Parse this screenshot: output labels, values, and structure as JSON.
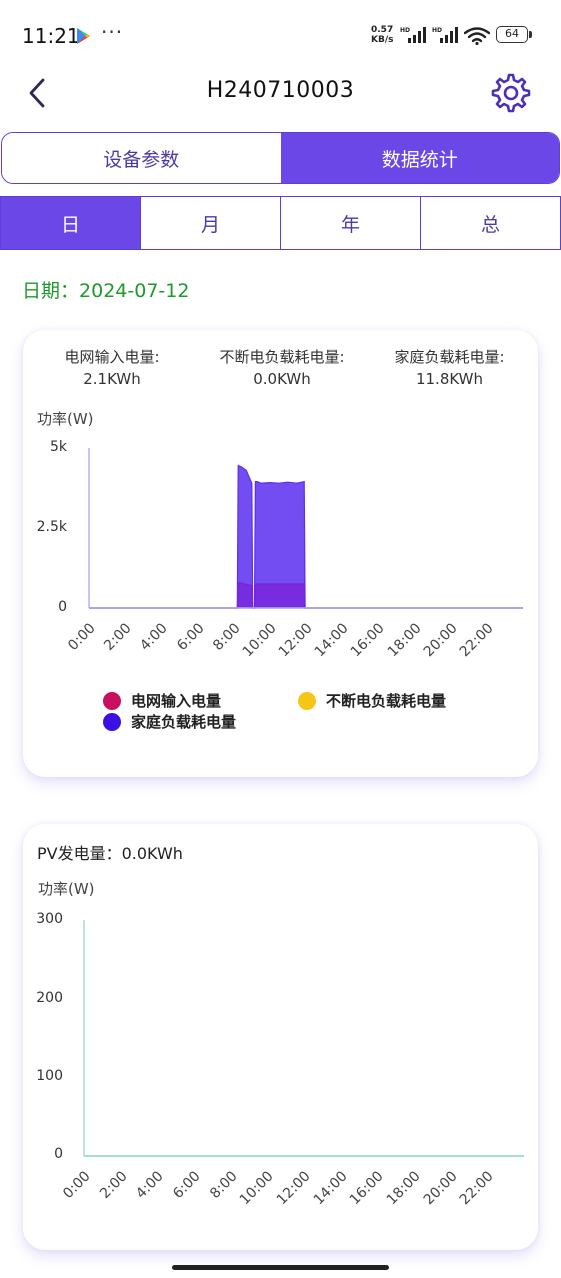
{
  "status_bar": {
    "time": "11:21",
    "more": "···",
    "net_speed_value": "0.57",
    "net_speed_unit": "KB/s",
    "battery": "64",
    "icons": [
      "play-store-icon",
      "signal-icon",
      "wifi-icon",
      "battery-icon"
    ]
  },
  "header": {
    "title": "H240710003",
    "back_icon": "chevron-left-icon",
    "settings_icon": "gear-icon"
  },
  "main_tabs": [
    {
      "label": "设备参数",
      "active": false
    },
    {
      "label": "数据统计",
      "active": true
    }
  ],
  "period_tabs": [
    {
      "label": "日",
      "active": true
    },
    {
      "label": "月",
      "active": false
    },
    {
      "label": "年",
      "active": false
    },
    {
      "label": "总",
      "active": false
    }
  ],
  "date": {
    "label": "日期：",
    "value": "2024-07-12"
  },
  "card1": {
    "stats": [
      {
        "label": "电网输入电量:",
        "value": "2.1KWh"
      },
      {
        "label": "不断电负载耗电量:",
        "value": "0.0KWh"
      },
      {
        "label": "家庭负载耗电量:",
        "value": "11.8KWh"
      }
    ],
    "legend": [
      {
        "name": "电网输入电量",
        "color": "#C8105F"
      },
      {
        "name": "不断电负载耗电量",
        "color": "#F5C518"
      },
      {
        "name": "家庭负载耗电量",
        "color": "#3A10E5"
      }
    ]
  },
  "card2": {
    "pv_label": "PV发电量：",
    "pv_value": "0.0KWh"
  },
  "colors": {
    "accent": "#6B47E8",
    "date_green": "#1E9A2A",
    "home_load": "#5B2EF0",
    "grid_input": "#7A22D8",
    "axis": "#9FA4EE",
    "pv_axis": "#8FD6C4"
  },
  "chart_data": [
    {
      "type": "area",
      "title": "",
      "ylabel": "功率(W)",
      "xlabel": "",
      "x_ticks": [
        "0:00",
        "2:00",
        "4:00",
        "6:00",
        "8:00",
        "10:00",
        "12:00",
        "14:00",
        "16:00",
        "18:00",
        "20:00",
        "22:00"
      ],
      "y_ticks": [
        "0",
        "2.5k",
        "5k"
      ],
      "xlim": [
        0,
        24
      ],
      "ylim": [
        0,
        5000
      ],
      "series": [
        {
          "name": "家庭负载耗电量",
          "color": "#5B2EF0",
          "x": [
            0,
            8.2,
            8.25,
            8.45,
            8.7,
            8.85,
            9.0,
            9.05,
            9.15,
            9.2,
            9.3,
            9.5,
            10.0,
            10.5,
            11.0,
            11.5,
            11.9,
            11.95,
            24
          ],
          "y": [
            0,
            0,
            4450,
            4400,
            4300,
            4100,
            3900,
            0,
            0,
            3950,
            3950,
            3900,
            3920,
            3900,
            3930,
            3900,
            3950,
            0,
            0
          ]
        },
        {
          "name": "电网输入电量",
          "color": "#7A22D8",
          "x": [
            0,
            8.2,
            8.25,
            9.0,
            9.05,
            9.15,
            9.2,
            11.9,
            11.95,
            24
          ],
          "y": [
            0,
            0,
            800,
            700,
            0,
            0,
            750,
            750,
            0,
            0
          ]
        },
        {
          "name": "不断电负载耗电量",
          "color": "#F5C518",
          "x": [
            0,
            24
          ],
          "y": [
            0,
            0
          ]
        }
      ]
    },
    {
      "type": "line",
      "title": "",
      "ylabel": "功率(W)",
      "xlabel": "",
      "x_ticks": [
        "0:00",
        "2:00",
        "4:00",
        "6:00",
        "8:00",
        "10:00",
        "12:00",
        "14:00",
        "16:00",
        "18:00",
        "20:00",
        "22:00"
      ],
      "y_ticks": [
        "0",
        "100",
        "200",
        "300"
      ],
      "xlim": [
        0,
        24
      ],
      "ylim": [
        0,
        300
      ],
      "series": [
        {
          "color": "#8FD6C4",
          "x": [
            0,
            24
          ],
          "y": [
            0,
            0
          ]
        }
      ]
    }
  ]
}
